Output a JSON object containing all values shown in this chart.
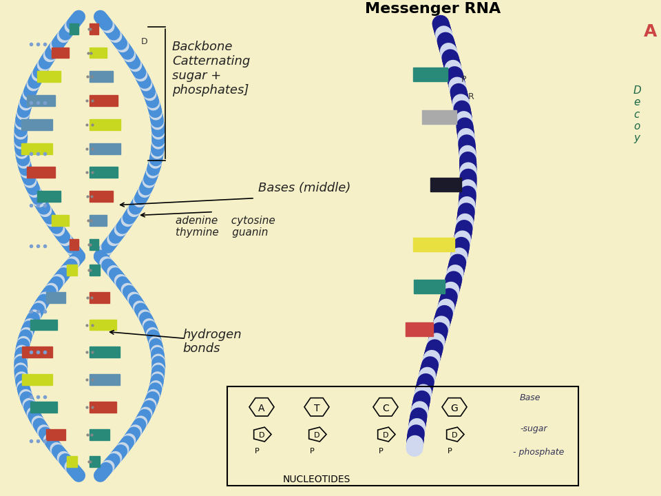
{
  "bg_color": "#f5f0c8",
  "title": "Messenger RNA",
  "dna_backbone_color": "#4a90d9",
  "dna_backbone_dark": "#2255a0",
  "rna_color": "#1a1a8c",
  "base_colors": {
    "teal": "#2a8a7a",
    "red": "#c04030",
    "yellow_green": "#c8d820",
    "blue_gray": "#6090b0",
    "gray": "#aaaaaa",
    "yellow": "#e8e040",
    "dark_teal": "#1a5a5a"
  },
  "annotations": {
    "backbone": "Backbone\nCatternating\nsugar +\nphosphates]",
    "bases": "Bases (middle)",
    "adenine": "adenine",
    "thymine": "thymine",
    "cytosine": "cytosine",
    "guanine": "guanin",
    "hydrogen": "hydrogen\nbonds",
    "messenger_rna": "Messenger RNA",
    "p_label": "P",
    "r_label": "R",
    "d_label": "D",
    "nucleotides": "NUCLEOTIDES",
    "base_label": "Base",
    "sugar_label": "-sugar",
    "phosphate_label": "- phosphate"
  }
}
